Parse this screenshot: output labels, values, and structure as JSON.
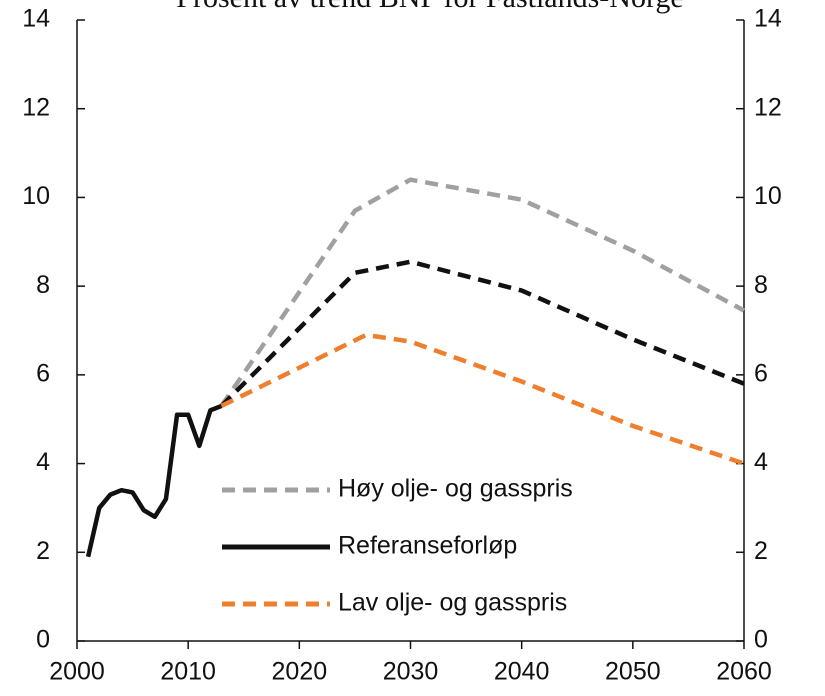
{
  "chart_data": {
    "type": "line",
    "title": "Prosent av trend BNP for Fastlands-Norge",
    "xlim": [
      2000,
      2060
    ],
    "xticks": [
      2000,
      2010,
      2020,
      2030,
      2040,
      2050,
      2060
    ],
    "ylim": [
      0,
      14
    ],
    "yticks": [
      0,
      2,
      4,
      6,
      8,
      10,
      12,
      14
    ],
    "y2lim": [
      0,
      14
    ],
    "y2ticks": [
      0,
      2,
      4,
      6,
      8,
      10,
      12,
      14
    ],
    "series": [
      {
        "name": "Høy olje- og gasspris",
        "color": "#a0a0a0",
        "dashed": true,
        "x": [
          2013,
          2025,
          2030,
          2040,
          2050,
          2060
        ],
        "values": [
          5.3,
          9.7,
          10.4,
          9.95,
          8.8,
          7.45
        ]
      },
      {
        "name": "Referanseforløp",
        "color": "#111111",
        "dashed": false,
        "dashed_from": 2013,
        "x": [
          2001,
          2002,
          2003,
          2004,
          2005,
          2006,
          2007,
          2008,
          2009,
          2010,
          2011,
          2012,
          2013,
          2025,
          2030,
          2040,
          2050,
          2060
        ],
        "values": [
          1.9,
          3.0,
          3.3,
          3.4,
          3.35,
          2.95,
          2.8,
          3.2,
          5.1,
          5.1,
          4.4,
          5.2,
          5.3,
          8.3,
          8.55,
          7.9,
          6.8,
          5.8
        ]
      },
      {
        "name": "Lav olje- og gasspris",
        "color": "#f07f2d",
        "dashed": true,
        "x": [
          2013,
          2026,
          2030,
          2040,
          2050,
          2060
        ],
        "values": [
          5.3,
          6.9,
          6.75,
          5.85,
          4.85,
          4.0
        ]
      }
    ]
  }
}
